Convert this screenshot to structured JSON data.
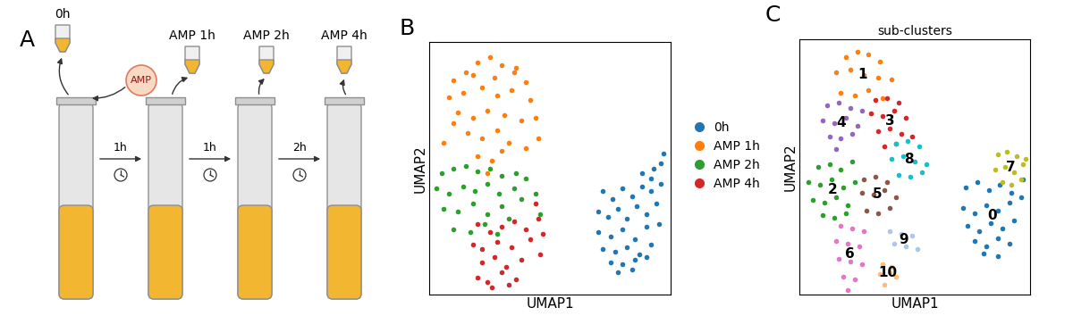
{
  "diagram": {
    "panel_label": "A",
    "reagent": "AMP",
    "samples": [
      "0h",
      "AMP 1h",
      "AMP 2h",
      "AMP 4h"
    ],
    "intervals": [
      "1h",
      "1h",
      "2h"
    ]
  },
  "chart_data": [
    {
      "type": "scatter",
      "panel_label": "B",
      "xlabel": "UMAP1",
      "ylabel": "UMAP2",
      "xlim": [
        0,
        100
      ],
      "ylim": [
        0,
        100
      ],
      "tick_labels": false,
      "legend": "right",
      "series": [
        {
          "name": "0h",
          "color": "#1f77b4",
          "x": [
            72,
            76,
            80,
            84,
            88,
            92,
            96,
            70,
            74,
            78,
            82,
            86,
            90,
            94,
            70,
            75,
            80,
            85,
            90,
            95,
            72,
            77,
            82,
            87,
            92,
            75,
            80,
            85,
            90,
            78,
            84,
            88,
            93,
            97,
            92,
            96
          ],
          "y": [
            41,
            38,
            42,
            39,
            43,
            41,
            44,
            33,
            31,
            34,
            30,
            35,
            32,
            36,
            25,
            23,
            26,
            22,
            27,
            28,
            18,
            17,
            19,
            16,
            20,
            13,
            12,
            14,
            15,
            9,
            10,
            48,
            50,
            56,
            46,
            52
          ]
        },
        {
          "name": "AMP 1h",
          "color": "#ff7f0e",
          "x": [
            10,
            15,
            20,
            25,
            30,
            35,
            40,
            8,
            14,
            22,
            28,
            34,
            42,
            12,
            18,
            24,
            31,
            38,
            16,
            22,
            28,
            33,
            20,
            26,
            30,
            24,
            18,
            27,
            36,
            44,
            10,
            6,
            45,
            40
          ],
          "y": [
            85,
            88,
            92,
            94,
            91,
            88,
            84,
            78,
            80,
            82,
            79,
            81,
            77,
            72,
            70,
            73,
            71,
            69,
            64,
            62,
            65,
            60,
            55,
            53,
            57,
            48,
            87,
            86,
            90,
            70,
            68,
            60,
            62,
            58
          ]
        },
        {
          "name": "AMP 2h",
          "color": "#2ca02c",
          "x": [
            5,
            10,
            15,
            20,
            25,
            30,
            3,
            8,
            14,
            19,
            24,
            29,
            35,
            6,
            12,
            18,
            24,
            30,
            38,
            10,
            17,
            23,
            28,
            40,
            44,
            46,
            33,
            36
          ],
          "y": [
            48,
            50,
            51,
            49,
            50,
            47,
            42,
            40,
            43,
            41,
            44,
            40,
            42,
            34,
            33,
            36,
            32,
            35,
            38,
            26,
            25,
            28,
            24,
            46,
            40,
            32,
            30,
            48
          ]
        },
        {
          "name": "AMP 4h",
          "color": "#d62728",
          "x": [
            20,
            25,
            30,
            35,
            40,
            45,
            18,
            22,
            28,
            34,
            42,
            22,
            27,
            32,
            38,
            46,
            20,
            24,
            30,
            36,
            26,
            33,
            44,
            47
          ],
          "y": [
            28,
            25,
            27,
            29,
            26,
            30,
            20,
            18,
            21,
            19,
            22,
            13,
            15,
            11,
            14,
            16,
            7,
            5,
            9,
            6,
            3,
            4,
            36,
            24
          ]
        }
      ]
    },
    {
      "type": "scatter",
      "panel_label": "C",
      "title": "sub-clusters",
      "xlabel": "UMAP1",
      "ylabel": "UMAP2",
      "xlim": [
        0,
        100
      ],
      "ylim": [
        0,
        100
      ],
      "tick_labels": false,
      "series": [
        {
          "name": "0",
          "color": "#1f77b4",
          "x": [
            72,
            77,
            82,
            87,
            92,
            97,
            71,
            76,
            81,
            86,
            91,
            96,
            73,
            78,
            83,
            88,
            93,
            76,
            81,
            86,
            91,
            80,
            86
          ],
          "y": [
            42,
            44,
            41,
            43,
            40,
            45,
            34,
            32,
            35,
            33,
            36,
            38,
            27,
            25,
            28,
            26,
            29,
            21,
            19,
            22,
            20,
            16,
            15
          ]
        },
        {
          "name": "1",
          "color": "#ff7f0e",
          "x": [
            20,
            25,
            30,
            35,
            16,
            22,
            28,
            34,
            40,
            18,
            24,
            30,
            36
          ],
          "y": [
            93,
            95,
            94,
            91,
            87,
            88,
            86,
            85,
            84,
            79,
            78,
            80,
            77
          ]
        },
        {
          "name": "2",
          "color": "#2ca02c",
          "x": [
            8,
            13,
            18,
            23,
            4,
            9,
            14,
            19,
            24,
            6,
            11,
            16,
            21,
            10,
            15,
            20
          ],
          "y": [
            50,
            51,
            49,
            52,
            44,
            43,
            45,
            42,
            44,
            37,
            36,
            38,
            35,
            31,
            30,
            32
          ]
        },
        {
          "name": "3",
          "color": "#d62728",
          "x": [
            33,
            38,
            43,
            31,
            36,
            41,
            46,
            34,
            39,
            44,
            49,
            37,
            42
          ],
          "y": [
            76,
            77,
            75,
            71,
            70,
            72,
            69,
            64,
            65,
            63,
            62,
            58,
            59
          ]
        },
        {
          "name": "4",
          "color": "#9467bd",
          "x": [
            12,
            17,
            22,
            27,
            10,
            15,
            20,
            25,
            13,
            18,
            23,
            16
          ],
          "y": [
            74,
            75,
            73,
            72,
            68,
            67,
            69,
            66,
            62,
            61,
            63,
            57
          ]
        },
        {
          "name": "5",
          "color": "#8c564b",
          "x": [
            28,
            33,
            38,
            27,
            32,
            37,
            42,
            29,
            34,
            39
          ],
          "y": [
            45,
            46,
            44,
            40,
            39,
            41,
            38,
            33,
            32,
            34
          ]
        },
        {
          "name": "6",
          "color": "#e377c2",
          "x": [
            18,
            23,
            28,
            16,
            21,
            26,
            17,
            22,
            27,
            19,
            24,
            21
          ],
          "y": [
            27,
            26,
            25,
            21,
            20,
            19,
            14,
            13,
            12,
            7,
            6,
            2
          ]
        },
        {
          "name": "7",
          "color": "#bcbd22",
          "x": [
            86,
            90,
            94,
            98,
            85,
            89,
            93,
            97,
            88,
            92,
            96
          ],
          "y": [
            55,
            56,
            54,
            53,
            49,
            50,
            48,
            51,
            44,
            43,
            45
          ]
        },
        {
          "name": "8",
          "color": "#17becf",
          "x": [
            42,
            47,
            52,
            40,
            45,
            50,
            55,
            43,
            48,
            53
          ],
          "y": [
            59,
            60,
            58,
            53,
            54,
            52,
            51,
            47,
            46,
            48
          ]
        },
        {
          "name": "9",
          "color": "#aec7e8",
          "x": [
            39,
            44,
            49,
            41,
            46,
            51
          ],
          "y": [
            25,
            24,
            23,
            20,
            19,
            18
          ]
        },
        {
          "name": "10",
          "color": "#ffbb78",
          "x": [
            36,
            40,
            35,
            39,
            42,
            37
          ],
          "y": [
            12,
            11,
            8,
            9,
            7,
            4
          ]
        }
      ]
    }
  ]
}
